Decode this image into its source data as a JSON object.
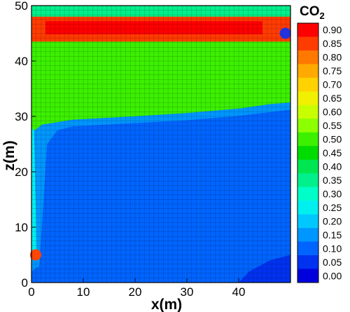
{
  "chart_data": {
    "type": "heatmap",
    "xlabel": "x(m)",
    "ylabel": "z(m)",
    "xlim": [
      0,
      50
    ],
    "ylim": [
      0,
      50
    ],
    "x_ticks": [
      0,
      10,
      20,
      30,
      40
    ],
    "y_ticks": [
      0,
      10,
      20,
      30,
      40,
      50
    ],
    "grid": "mesh",
    "colorbar": {
      "title": "CO",
      "title_subscript": "2",
      "placement": "right",
      "levels": [
        "0.90",
        "0.85",
        "0.80",
        "0.75",
        "0.70",
        "0.65",
        "0.60",
        "0.55",
        "0.50",
        "0.45",
        "0.40",
        "0.35",
        "0.30",
        "0.25",
        "0.20",
        "0.15",
        "0.10",
        "0.05",
        "0.00"
      ],
      "colors": [
        "#ff0000",
        "#ff3c00",
        "#ff7800",
        "#ffaa00",
        "#ffd200",
        "#f0f000",
        "#c8ff00",
        "#8cff00",
        "#3cf000",
        "#00dc00",
        "#00e650",
        "#00f08c",
        "#00ffc8",
        "#00f0f0",
        "#00c8ff",
        "#0096ff",
        "#0064ff",
        "#0032f0",
        "#0000dc"
      ]
    },
    "regions": [
      {
        "name": "upper-saturated-band",
        "z_range": [
          43.5,
          48
        ],
        "value_range": [
          0.8,
          0.95
        ]
      },
      {
        "name": "upper-green-zone",
        "z_range": [
          29,
          43.5
        ],
        "value_range": [
          0.45,
          0.5
        ]
      },
      {
        "name": "lower-blue-zone",
        "z_range": [
          0,
          29
        ],
        "value_range": [
          0.05,
          0.15
        ]
      }
    ],
    "markers": [
      {
        "name": "injection-point",
        "x": 0.8,
        "z": 5,
        "color": "#ff4500"
      },
      {
        "name": "production-point",
        "x": 49,
        "z": 45,
        "color": "#2233dd"
      }
    ]
  }
}
